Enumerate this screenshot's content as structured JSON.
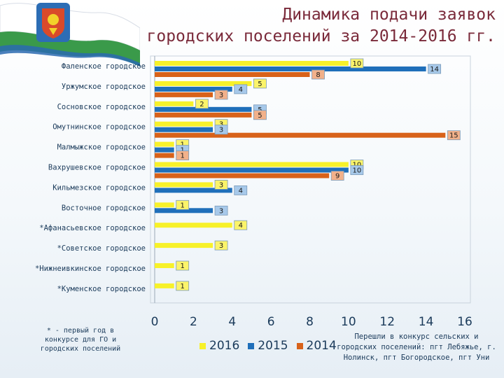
{
  "header": {
    "title_line1": "Динамика подачи заявок",
    "title_line2": "городских поселений за 2014-2016 гг."
  },
  "footnote": "* - первый год в конкурсе для ГО и городских поселений",
  "note": "Перешли в конкурс сельских и городских поселений: пгт Лебяжье, г. Нолинск, пгт Богородское, пгт Уни",
  "colors": {
    "y2016": "#f7f12a",
    "y2015": "#1f6fba",
    "y2014": "#d8621a",
    "label_box_border": "#7a9ab8",
    "category_text": "#1a3a5a"
  },
  "chart_data": {
    "type": "bar",
    "orientation": "horizontal",
    "categories": [
      "Фаленское городское",
      "Уржумское городское",
      "Сосновское городское",
      "Омутнинское городское",
      "Малмыжское городское",
      "Вахрушевское городское",
      "Кильмезское городское",
      "Восточное городское",
      "*Афанасьевское городское",
      "*Советское городское",
      "*Нижнеивкинское городское",
      "*Куменское городское"
    ],
    "series": [
      {
        "name": "2016",
        "values": [
          10,
          5,
          2,
          3,
          1,
          10,
          3,
          1,
          4,
          3,
          1,
          1
        ]
      },
      {
        "name": "2015",
        "values": [
          14,
          4,
          5,
          3,
          1,
          10,
          4,
          3,
          null,
          null,
          null,
          null
        ]
      },
      {
        "name": "2014",
        "values": [
          8,
          3,
          5,
          15,
          1,
          9,
          null,
          null,
          null,
          null,
          null,
          null
        ]
      }
    ],
    "xlim": [
      0,
      16
    ],
    "x_ticks": [
      "0",
      "2",
      "4",
      "6",
      "8",
      "10",
      "12",
      "14",
      "16"
    ],
    "legend_position": "bottom",
    "grid": false,
    "data_labels": true
  }
}
